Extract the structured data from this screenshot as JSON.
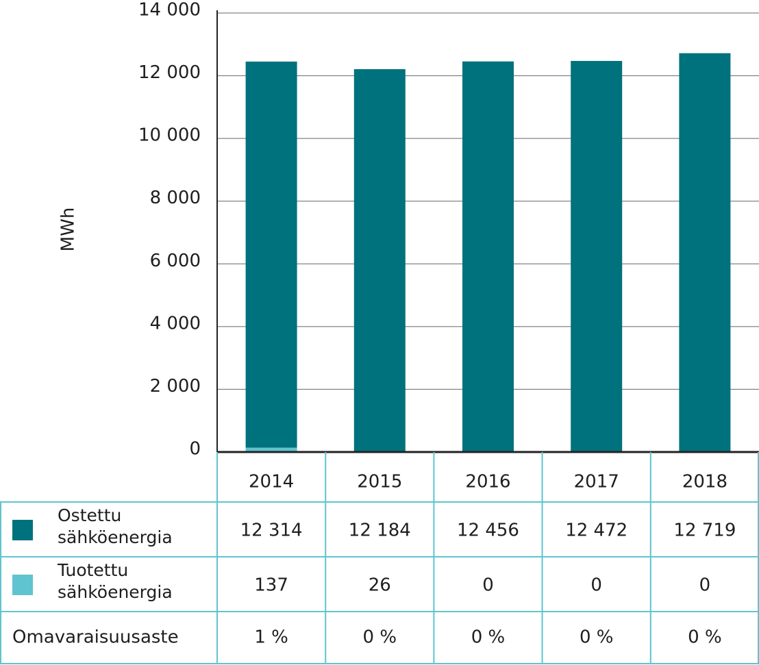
{
  "chart_data": {
    "type": "bar",
    "stacked": true,
    "ylabel": "MWh",
    "categories": [
      "2014",
      "2015",
      "2016",
      "2017",
      "2018"
    ],
    "series": [
      {
        "name": "Ostettu sähköenergia",
        "color": "#00727d",
        "values": [
          12314,
          12184,
          12456,
          12472,
          12719
        ],
        "value_labels": [
          "12 314",
          "12 184",
          "12 456",
          "12 472",
          "12 719"
        ]
      },
      {
        "name": "Tuotettu sähköenergia",
        "color": "#5fc4cf",
        "values": [
          137,
          26,
          0,
          0,
          0
        ]
      }
    ],
    "self_sufficiency": {
      "name": "Omavaraisuusaste",
      "values": [
        1,
        0,
        0,
        0,
        0
      ],
      "value_labels": [
        "1 %",
        "0 %",
        "0 %",
        "0 %",
        "0 %"
      ]
    },
    "ylim": [
      0,
      14000
    ],
    "yticks": [
      0,
      {
        "value": 2000,
        "label": "2 000"
      },
      {
        "value": 4000,
        "label": "4 000"
      },
      {
        "value": 6000,
        "label": "6 000"
      },
      {
        "value": 8000,
        "label": "8 000"
      },
      {
        "value": 10000,
        "label": "10 000"
      },
      {
        "value": 12000,
        "label": "12 000"
      },
      {
        "value": 14000,
        "label": "14 000"
      }
    ],
    "grid": true
  }
}
